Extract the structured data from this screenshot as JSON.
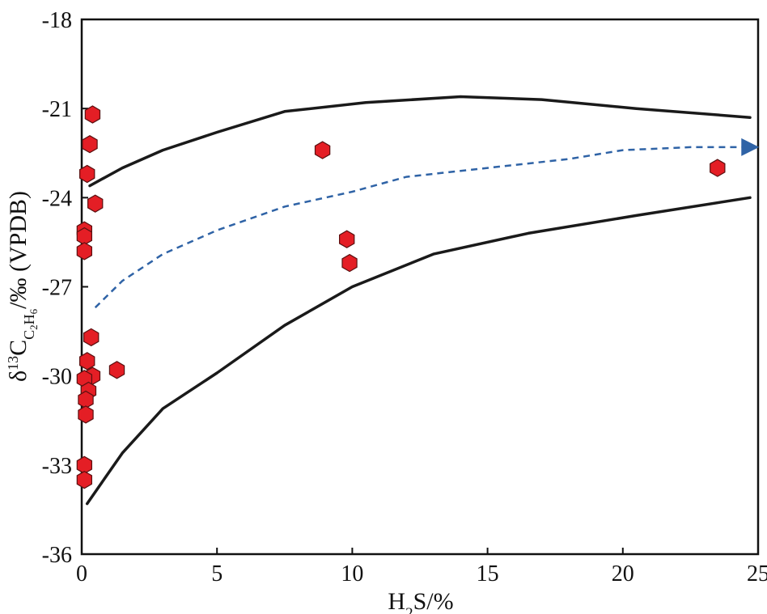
{
  "chart_data": {
    "type": "scatter",
    "x_label": "H2S/%",
    "y_label": "δ13C C2H6 /‰ (VPDB)",
    "xlim": [
      0,
      25
    ],
    "ylim": [
      -36,
      -18
    ],
    "x_ticks": [
      "0",
      "5",
      "10",
      "15",
      "20",
      "25"
    ],
    "y_ticks": [
      "-18",
      "-21",
      "-24",
      "-27",
      "-30",
      "-33",
      "-36"
    ],
    "points": [
      {
        "x": 0.4,
        "y": -21.2
      },
      {
        "x": 0.3,
        "y": -22.2
      },
      {
        "x": 0.2,
        "y": -23.2
      },
      {
        "x": 0.5,
        "y": -24.2
      },
      {
        "x": 0.1,
        "y": -25.1
      },
      {
        "x": 0.1,
        "y": -25.3
      },
      {
        "x": 0.1,
        "y": -25.8
      },
      {
        "x": 0.35,
        "y": -28.7
      },
      {
        "x": 0.2,
        "y": -29.5
      },
      {
        "x": 0.4,
        "y": -30.0
      },
      {
        "x": 0.1,
        "y": -30.1
      },
      {
        "x": 0.25,
        "y": -30.5
      },
      {
        "x": 0.15,
        "y": -30.8
      },
      {
        "x": 0.15,
        "y": -31.3
      },
      {
        "x": 0.1,
        "y": -33.0
      },
      {
        "x": 0.1,
        "y": -33.5
      },
      {
        "x": 1.3,
        "y": -29.8
      },
      {
        "x": 8.9,
        "y": -22.4
      },
      {
        "x": 9.8,
        "y": -25.4
      },
      {
        "x": 9.9,
        "y": -26.2
      },
      {
        "x": 23.5,
        "y": -23.0
      }
    ],
    "upper_envelope": [
      [
        0.3,
        -23.6
      ],
      [
        1.5,
        -23.0
      ],
      [
        3.0,
        -22.4
      ],
      [
        5.0,
        -21.8
      ],
      [
        7.5,
        -21.1
      ],
      [
        10.5,
        -20.8
      ],
      [
        14.0,
        -20.6
      ],
      [
        17.0,
        -20.7
      ],
      [
        20.5,
        -21.0
      ],
      [
        24.7,
        -21.3
      ]
    ],
    "lower_envelope": [
      [
        0.2,
        -34.3
      ],
      [
        1.5,
        -32.6
      ],
      [
        3.0,
        -31.1
      ],
      [
        5.0,
        -29.9
      ],
      [
        7.5,
        -28.3
      ],
      [
        10.0,
        -27.0
      ],
      [
        13.0,
        -25.9
      ],
      [
        16.5,
        -25.2
      ],
      [
        20.5,
        -24.6
      ],
      [
        24.7,
        -24.0
      ]
    ],
    "trend_arrow": [
      [
        0.5,
        -27.7
      ],
      [
        1.5,
        -26.8
      ],
      [
        3.0,
        -25.9
      ],
      [
        5.0,
        -25.1
      ],
      [
        7.5,
        -24.3
      ],
      [
        10.0,
        -23.8
      ],
      [
        12.0,
        -23.3
      ],
      [
        15.0,
        -23.0
      ],
      [
        18.0,
        -22.7
      ],
      [
        20.0,
        -22.4
      ],
      [
        22.5,
        -22.3
      ],
      [
        24.5,
        -22.3
      ]
    ],
    "colors": {
      "point_fill": "#e41e25",
      "trend": "#2f63a6",
      "envelope": "#1a1a1a"
    }
  }
}
